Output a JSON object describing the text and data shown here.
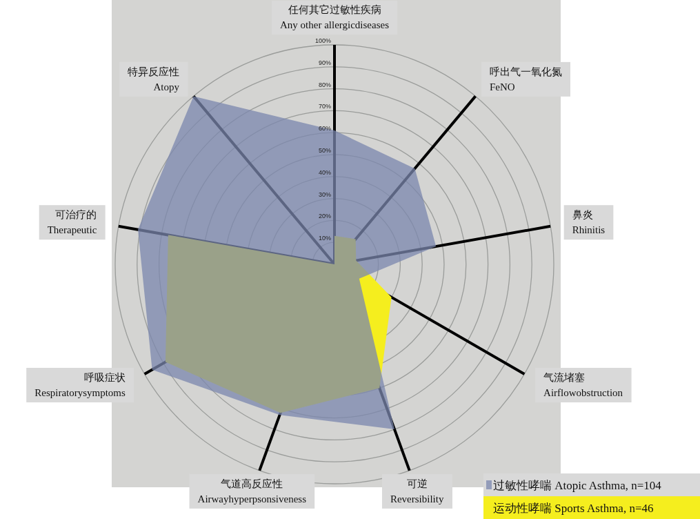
{
  "chart_data": {
    "type": "radar",
    "categories": [
      "任何其它过敏性疾病\nAny other allergicdiseases",
      "呼出气一氧化氮\nFeNO",
      "鼻炎\nRhinitis",
      "气流堵塞\nAirflowobstruction",
      "可逆\nReversibility",
      "气道高反应性\nAirwayhyperpsonsiveness",
      "呼吸症状\nRespiratorysymptoms",
      "可治疗的\nTherapeutic",
      "特异反应性\nAtopy"
    ],
    "series": [
      {
        "name": "过敏性哮喘 Atopic Asthma, n=104",
        "color": "#7b87ae",
        "values": [
          61,
          57,
          47,
          13,
          80,
          73,
          96,
          91,
          100
        ]
      },
      {
        "name": "运动性哮喘 Sports Asthma, n=46",
        "color": "#f5ee1e",
        "values": [
          13,
          15,
          10,
          30,
          60,
          72,
          89,
          77,
          0
        ]
      }
    ],
    "ylim": [
      0,
      100
    ],
    "yticks": [
      {
        "value": 10,
        "label": "10%"
      },
      {
        "value": 20,
        "label": "20%"
      },
      {
        "value": 30,
        "label": "30%"
      },
      {
        "value": 40,
        "label": "40%"
      },
      {
        "value": 50,
        "label": "50%"
      },
      {
        "value": 60,
        "label": "60%"
      },
      {
        "value": 70,
        "label": "70%"
      },
      {
        "value": 80,
        "label": "80%"
      },
      {
        "value": 90,
        "label": "90%"
      },
      {
        "value": 100,
        "label": "100%"
      }
    ],
    "grid": true,
    "legend": "bottom right"
  }
}
